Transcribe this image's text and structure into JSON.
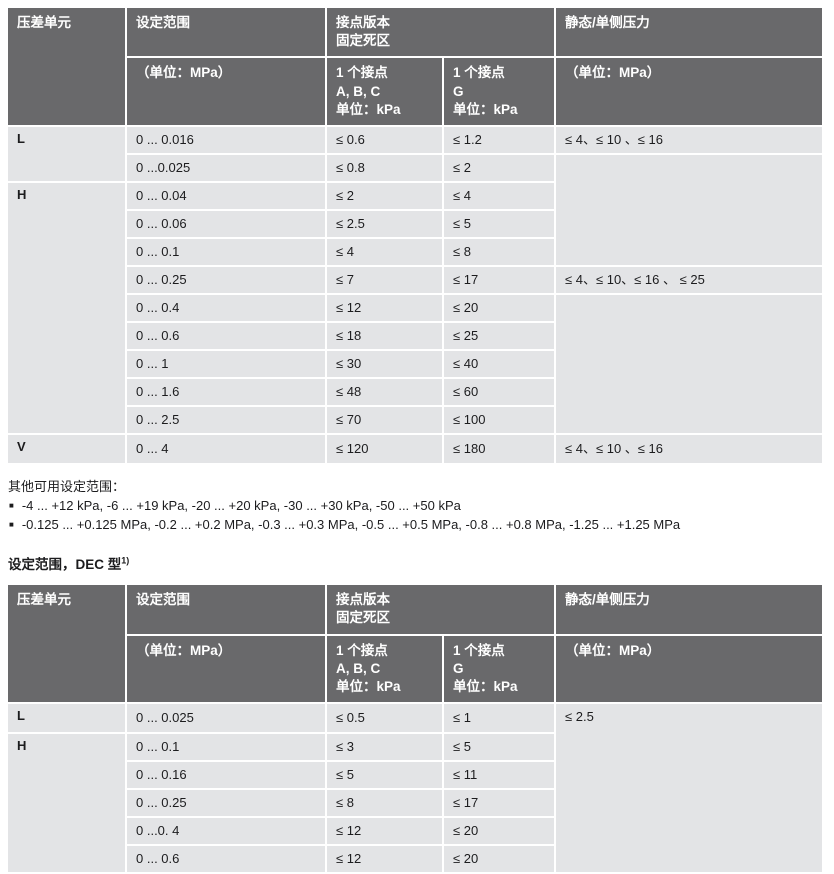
{
  "colors": {
    "header_bg": "#69696b",
    "cell_bg": "#e3e4e6",
    "header_text": "#ffffff",
    "body_text": "#1c1c1e"
  },
  "table_header": {
    "unit": "压差单元",
    "range": "设定范围",
    "contact": "接点版本\n固定死区",
    "static": "静态/单侧压力",
    "range_sub": "（单位：MPa）",
    "contact_abc_sub": "1 个接点\nA, B, C\n单位：kPa",
    "contact_g_sub": "1 个接点\nG\n单位：kPa",
    "static_sub": "（单位：MPa）"
  },
  "table1": {
    "rows": [
      {
        "unit": "L",
        "range": "0 ... 0.016",
        "abc": "≤ 0.6",
        "g": "≤ 1.2",
        "static": "≤ 4、≤ 10 、≤ 16"
      },
      {
        "range": "0 ...0.025",
        "abc": "≤ 0.8",
        "g": "≤ 2"
      },
      {
        "unit": "H",
        "range": "0 ... 0.04",
        "abc": "≤ 2",
        "g": "≤ 4"
      },
      {
        "range": "0 ... 0.06",
        "abc": "≤ 2.5",
        "g": "≤ 5"
      },
      {
        "range": "0 ... 0.1",
        "abc": "≤ 4",
        "g": "≤ 8"
      },
      {
        "range": "0 ... 0.25",
        "abc": "≤ 7",
        "g": "≤ 17",
        "static": "≤ 4、≤ 10、≤ 16 、 ≤ 25"
      },
      {
        "range": "0 ... 0.4",
        "abc": "≤ 12",
        "g": "≤ 20"
      },
      {
        "range": "0 ... 0.6",
        "abc": "≤ 18",
        "g": "≤ 25"
      },
      {
        "range": "0 ... 1",
        "abc": "≤ 30",
        "g": "≤ 40"
      },
      {
        "range": "0 ... 1.6",
        "abc": "≤ 48",
        "g": "≤ 60"
      },
      {
        "range": "0 ... 2.5",
        "abc": "≤ 70",
        "g": "≤ 100"
      },
      {
        "unit": "V",
        "range": "0 ... 4",
        "abc": "≤ 120",
        "g": "≤ 180",
        "static": "≤ 4、≤ 10 、≤ 16"
      }
    ]
  },
  "notes": {
    "title": "其他可用设定范围：",
    "bullet_glyph": "■",
    "bullets": [
      "-4 ... +12 kPa, -6 ... +19 kPa, -20 ... +20 kPa, -30 ... +30 kPa, -50 ... +50 kPa",
      "-0.125 ... +0.125 MPa, -0.2 ... +0.2 MPa, -0.3 ... +0.3 MPa, -0.5 ... +0.5 MPa, -0.8 ... +0.8 MPa, -1.25 ... +1.25 MPa"
    ]
  },
  "section2": {
    "heading": "设定范围，DEC 型",
    "footnote_marker": "1)"
  },
  "table2": {
    "rows": [
      {
        "unit": "L",
        "range": "0 ... 0.025",
        "abc": "≤ 0.5",
        "g": "≤ 1",
        "static": "≤ 2.5"
      },
      {
        "unit": "H",
        "range": "0 ... 0.1",
        "abc": "≤ 3",
        "g": "≤ 5"
      },
      {
        "range": "0 ... 0.16",
        "abc": "≤ 5",
        "g": "≤ 11"
      },
      {
        "range": "0 ... 0.25",
        "abc": "≤ 8",
        "g": "≤ 17"
      },
      {
        "range": "0 ...0. 4",
        "abc": "≤ 12",
        "g": "≤ 20"
      },
      {
        "range": "0 ... 0.6",
        "abc": "≤ 12",
        "g": "≤ 20"
      }
    ]
  }
}
